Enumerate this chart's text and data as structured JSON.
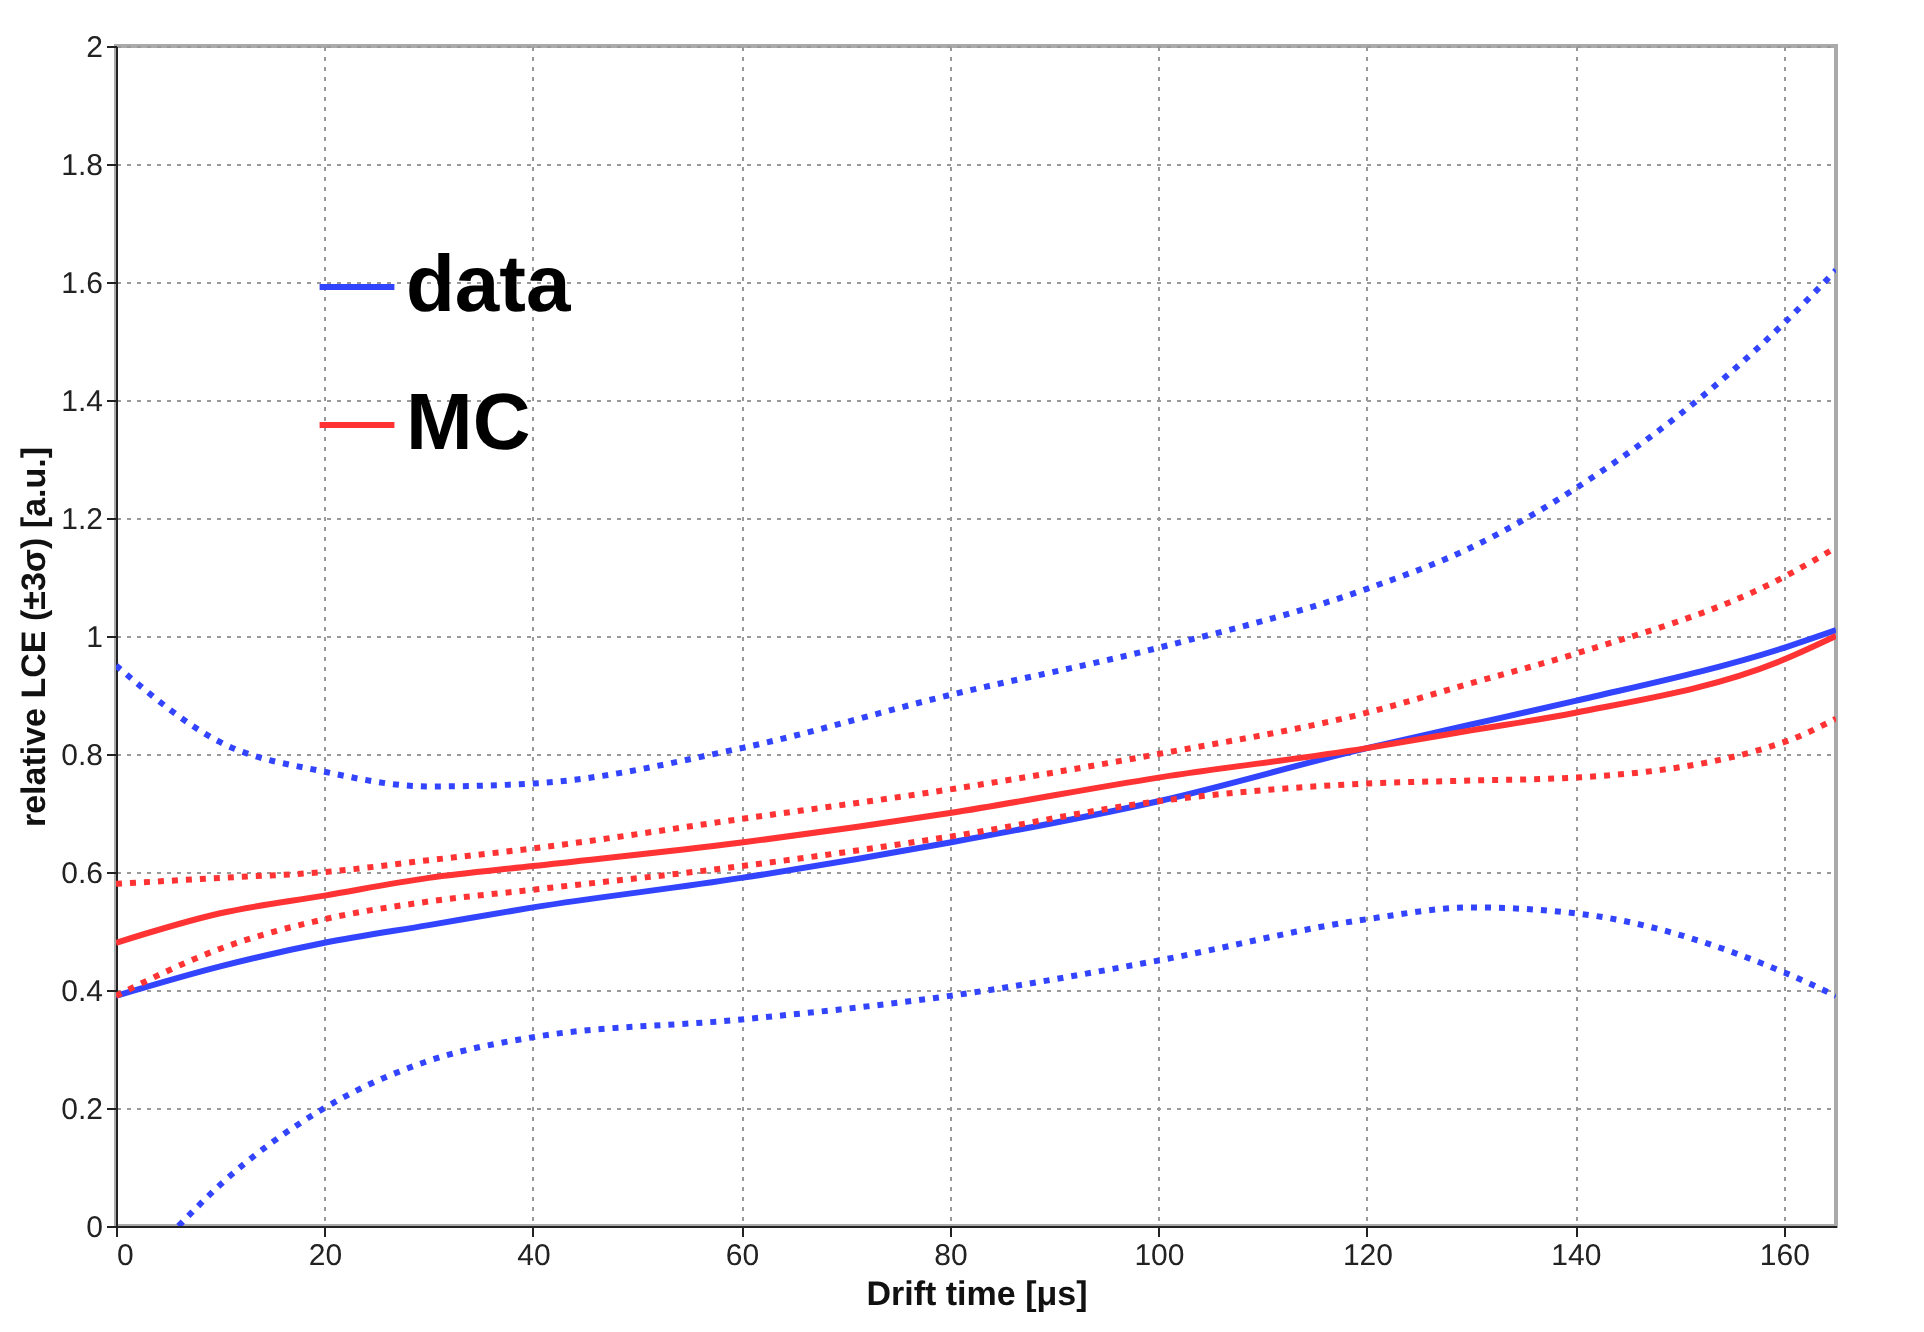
{
  "chart_data": {
    "type": "line",
    "xlabel": "Drift time [μs]",
    "ylabel": "relative LCE (±3σ) [a.u.]",
    "x": [
      0,
      10,
      20,
      30,
      40,
      60,
      80,
      100,
      120,
      130,
      140,
      160,
      165
    ],
    "series": [
      {
        "name": "data",
        "color": "#3344ff",
        "line_style": "solid",
        "values": [
          0.39,
          0.44,
          0.48,
          0.51,
          0.54,
          0.59,
          0.65,
          0.72,
          0.81,
          0.85,
          0.89,
          0.98,
          1.01
        ]
      },
      {
        "name": "MC",
        "color": "#ff3333",
        "line_style": "solid",
        "values": [
          0.48,
          0.53,
          0.56,
          0.59,
          0.61,
          0.65,
          0.7,
          0.76,
          0.81,
          0.84,
          0.87,
          0.96,
          1.0
        ]
      },
      {
        "color": "#3344ff",
        "line_style": "dotted",
        "values": [
          0.95,
          0.82,
          0.77,
          0.745,
          0.75,
          0.81,
          0.9,
          0.98,
          1.08,
          1.15,
          1.25,
          1.53,
          1.62
        ]
      },
      {
        "color": "#3344ff",
        "line_style": "dotted",
        "x": [
          6,
          10,
          20,
          30,
          40,
          60,
          80,
          100,
          120,
          130,
          140,
          160,
          165
        ],
        "values": [
          0.0,
          0.07,
          0.2,
          0.28,
          0.32,
          0.35,
          0.39,
          0.45,
          0.52,
          0.54,
          0.53,
          0.43,
          0.39
        ]
      },
      {
        "color": "#ff3333",
        "line_style": "dotted",
        "values": [
          0.58,
          0.59,
          0.6,
          0.62,
          0.64,
          0.69,
          0.74,
          0.8,
          0.87,
          0.92,
          0.97,
          1.1,
          1.15
        ]
      },
      {
        "color": "#ff3333",
        "line_style": "dotted",
        "values": [
          0.39,
          0.47,
          0.52,
          0.55,
          0.57,
          0.61,
          0.66,
          0.72,
          0.75,
          0.755,
          0.76,
          0.82,
          0.86
        ]
      }
    ],
    "xlim": [
      0,
      165
    ],
    "xticks": [
      0,
      20,
      40,
      60,
      80,
      100,
      120,
      140,
      160
    ],
    "ylim": [
      0,
      2
    ],
    "yticks": [
      0,
      0.2,
      0.4,
      0.6,
      0.8,
      1,
      1.2,
      1.4,
      1.6,
      1.8,
      2
    ],
    "grid": true,
    "legend": "top left"
  }
}
